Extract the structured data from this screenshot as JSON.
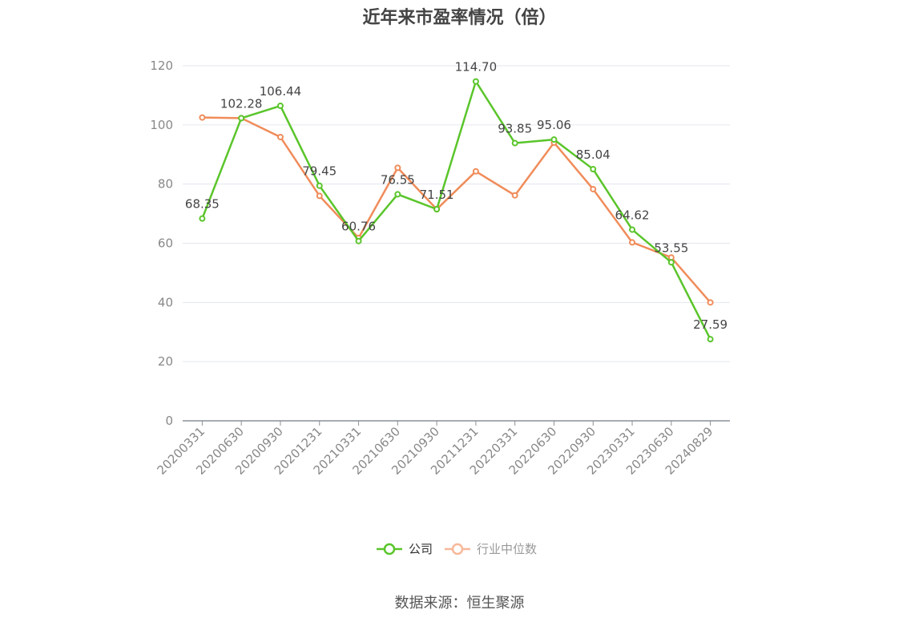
{
  "chart_data": {
    "type": "line",
    "title": "近年来市盈率情况（倍）",
    "source": "数据来源：恒生聚源",
    "x": [
      "20200331",
      "20200630",
      "20200930",
      "20201231",
      "20210331",
      "20210630",
      "20210930",
      "20211231",
      "20220331",
      "20220630",
      "20220930",
      "20230331",
      "20230630",
      "20240829"
    ],
    "ylim": [
      0,
      120
    ],
    "yticks": [
      0,
      20,
      40,
      60,
      80,
      100,
      120
    ],
    "grid": true,
    "legend_position": "bottom",
    "series": [
      {
        "name": "公司",
        "color": "#5ac52b",
        "values": [
          68.35,
          102.28,
          106.44,
          79.45,
          60.76,
          76.55,
          71.51,
          114.7,
          93.85,
          95.06,
          85.04,
          64.62,
          53.55,
          27.59
        ],
        "labels": [
          "68.35",
          "102.28",
          "106.44",
          "79.45",
          "60.76",
          "76.55",
          "71.51",
          "114.70",
          "93.85",
          "95.06",
          "85.04",
          "64.62",
          "53.55",
          "27.59"
        ]
      },
      {
        "name": "行业中位数",
        "color": "#f08c5a",
        "values": [
          102.5,
          102.3,
          95.9,
          76.0,
          61.8,
          85.5,
          71.5,
          84.3,
          76.2,
          94.0,
          78.3,
          60.3,
          55.2,
          40.0
        ]
      }
    ]
  }
}
